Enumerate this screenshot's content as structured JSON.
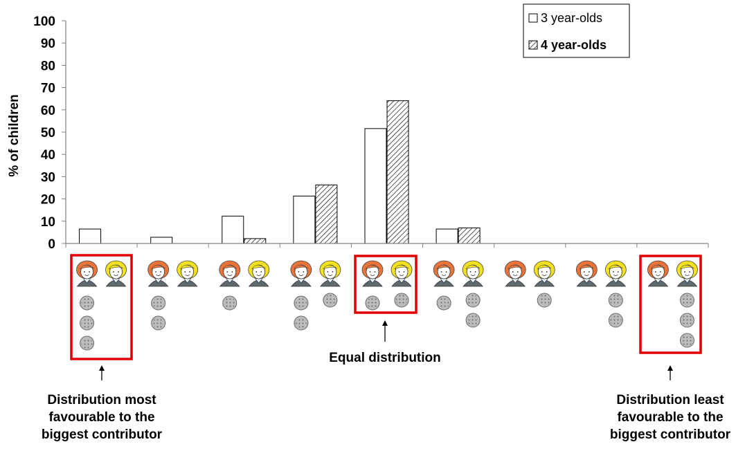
{
  "chart_data": {
    "type": "bar",
    "ylabel": "% of children",
    "xlabel": "",
    "ylim": [
      0,
      100
    ],
    "yticks": [
      0,
      10,
      20,
      30,
      40,
      50,
      60,
      70,
      80,
      90,
      100
    ],
    "categories": [
      "3-0",
      "3-1 (2 left)",
      "3-2 (1 left)",
      "2-1",
      "1-1",
      "1-2",
      "0-1 (2 left)",
      "0-2 (1 left)",
      "0-3"
    ],
    "series": [
      {
        "name": "3 year-olds",
        "pattern": "white",
        "values": [
          6.5,
          2.8,
          12.3,
          21.3,
          51.6,
          6.5,
          0,
          0,
          0
        ]
      },
      {
        "name": "4 year-olds",
        "pattern": "hatched",
        "values": [
          0,
          0,
          2.2,
          26.3,
          64.1,
          7.0,
          0,
          0,
          0
        ]
      }
    ],
    "cookie_distribution": [
      {
        "left": 3,
        "right": 0
      },
      {
        "left": 2,
        "right": 0
      },
      {
        "left": 1,
        "right": 0
      },
      {
        "left": 2,
        "right": 1
      },
      {
        "left": 1,
        "right": 1
      },
      {
        "left": 1,
        "right": 2
      },
      {
        "left": 0,
        "right": 1
      },
      {
        "left": 0,
        "right": 2
      },
      {
        "left": 0,
        "right": 3
      }
    ],
    "highlighted_categories": [
      0,
      4,
      8
    ],
    "legend_position": "top-right",
    "grid": false,
    "annotations": [
      {
        "category": 0,
        "text_lines": [
          "Distribution most",
          "favourable to the",
          "biggest contributor"
        ]
      },
      {
        "category": 4,
        "text_lines": [
          "Equal distribution"
        ]
      },
      {
        "category": 8,
        "text_lines": [
          "Distribution least",
          "favourable to the",
          "biggest contributor"
        ]
      }
    ],
    "colors": {
      "axis": "#808080",
      "bar_stroke": "#000000",
      "highlight": "#e00000",
      "hair_red": "#e8743a",
      "hair_yellow": "#f4e21e",
      "cookie": "#bcbcbc"
    }
  }
}
